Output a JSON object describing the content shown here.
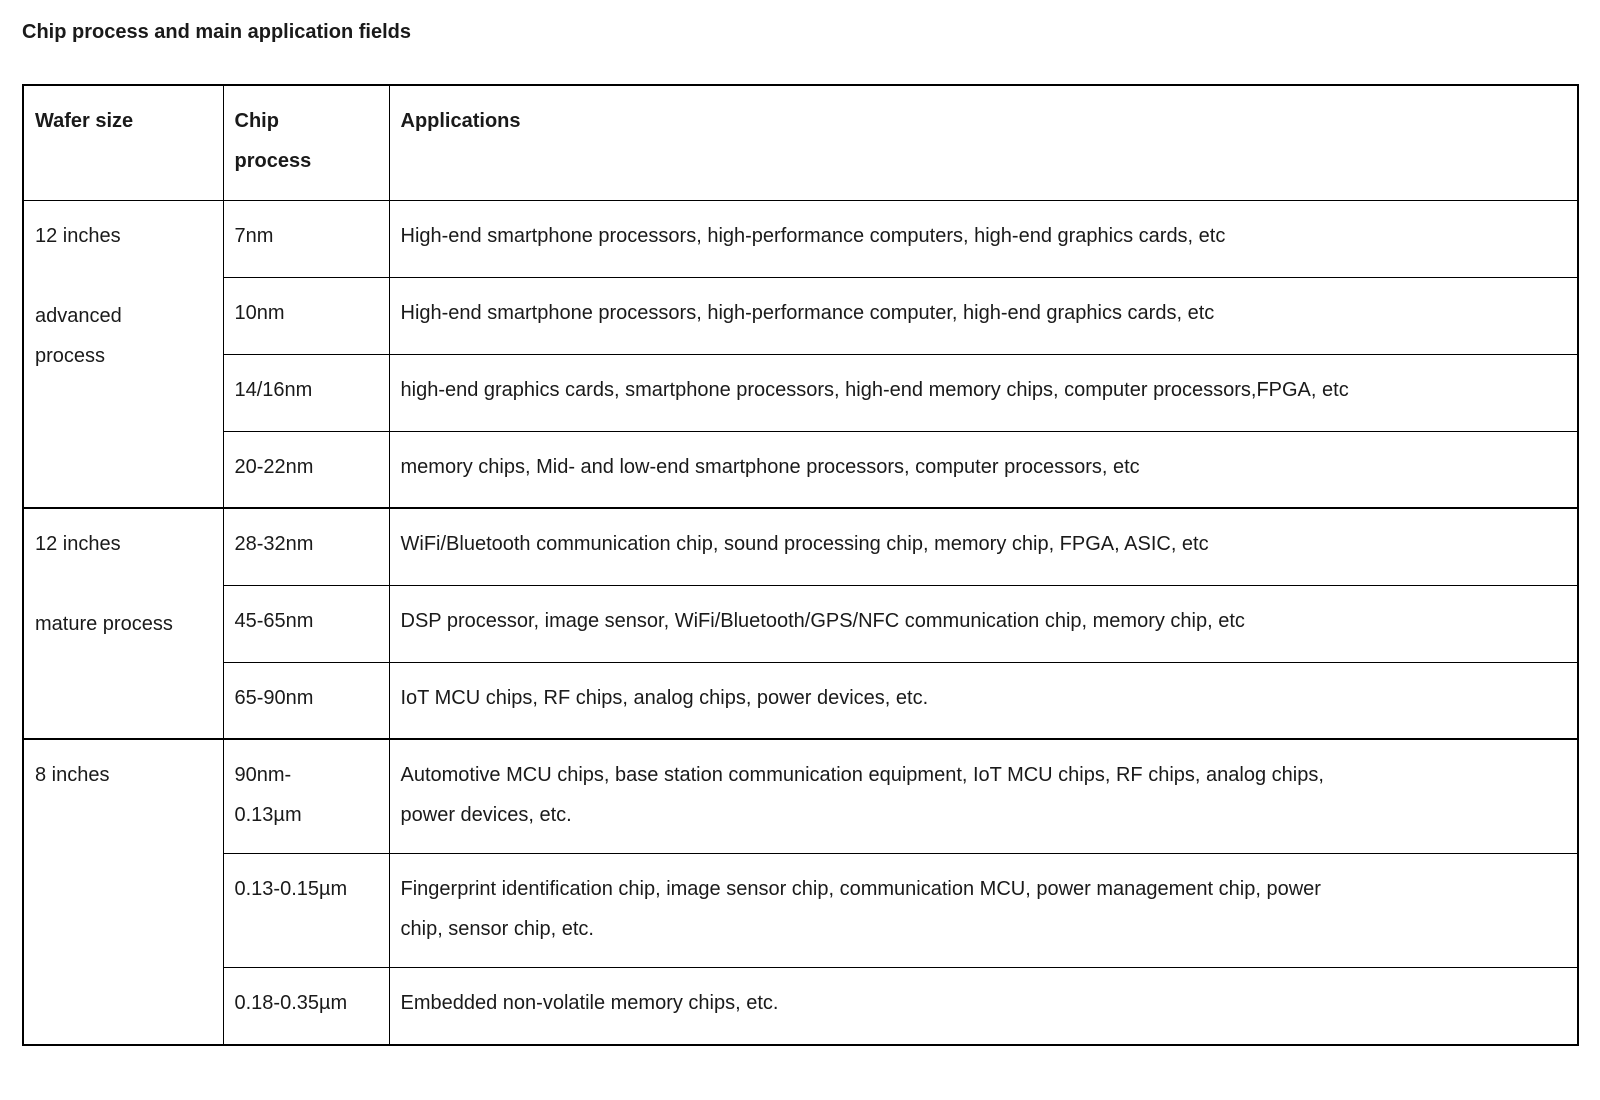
{
  "page_title": "Chip process and main application fields",
  "colors": {
    "background": "#ffffff",
    "text": "#1a1a1a",
    "border": "#000000"
  },
  "table": {
    "columns": [
      "Wafer size",
      "Chip\nprocess",
      "Applications"
    ],
    "groups": [
      {
        "wafer_size": "12 inches\n\nadvanced\nprocess",
        "rows": [
          {
            "chip_process": "7nm",
            "applications": "High-end smartphone processors, high-performance computers, high-end graphics cards, etc"
          },
          {
            "chip_process": "10nm",
            "applications": "High-end smartphone processors, high-performance computer, high-end graphics cards, etc"
          },
          {
            "chip_process": "14/16nm",
            "applications": "high-end graphics cards, smartphone processors, high-end memory chips, computer processors,FPGA, etc"
          },
          {
            "chip_process": "20-22nm",
            "applications": "memory chips, Mid- and low-end smartphone processors, computer processors, etc"
          }
        ]
      },
      {
        "wafer_size": "12 inches\n\nmature process",
        "rows": [
          {
            "chip_process": "28-32nm",
            "applications": "WiFi/Bluetooth communication chip, sound processing chip, memory chip, FPGA, ASIC, etc"
          },
          {
            "chip_process": "45-65nm",
            "applications": "DSP processor, image sensor, WiFi/Bluetooth/GPS/NFC communication chip, memory chip, etc"
          },
          {
            "chip_process": "65-90nm",
            "applications": "IoT MCU chips, RF chips, analog chips, power devices, etc."
          }
        ]
      },
      {
        "wafer_size": "8 inches",
        "rows": [
          {
            "chip_process": "90nm-\n0.13µm",
            "applications": "Automotive MCU chips, base station communication equipment, IoT MCU chips, RF chips, analog chips,\npower devices, etc."
          },
          {
            "chip_process": "0.13-0.15µm",
            "applications": "Fingerprint identification chip, image sensor chip, communication MCU, power management chip, power\nchip, sensor chip, etc."
          },
          {
            "chip_process": "0.18-0.35µm",
            "applications": "Embedded non-volatile memory chips, etc."
          }
        ]
      }
    ]
  }
}
